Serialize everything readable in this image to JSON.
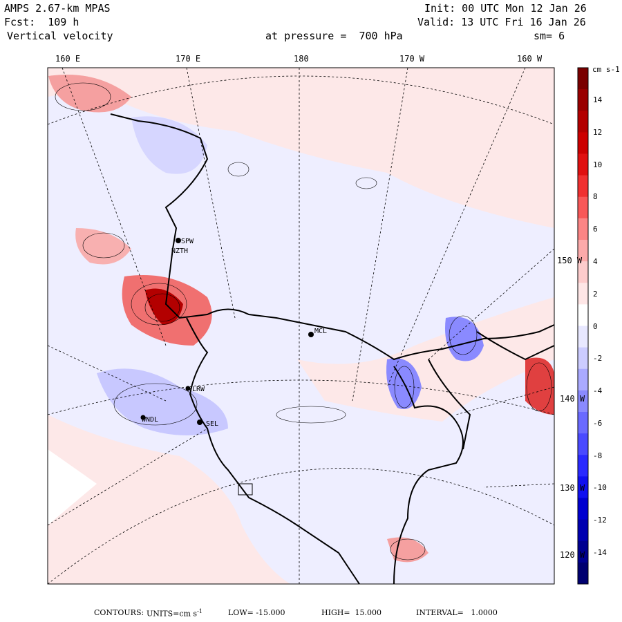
{
  "header": {
    "model": "AMPS 2.67-km MPAS",
    "forecast": "Fcst:  109 h",
    "field": "Vertical velocity",
    "init": "Init: 00 UTC Mon 12 Jan 26",
    "valid": "Valid: 13 UTC Fri 16 Jan 26",
    "pressure": "at pressure =  700 hPa",
    "smoothing": "sm= 6"
  },
  "longitude_labels": [
    "160 E",
    "170 E",
    "180",
    "170 W",
    "160 W"
  ],
  "latitude_labels": [
    "150 W",
    "140 W",
    "130 W",
    "120 W"
  ],
  "stations": [
    "SPW",
    "NZTH",
    "MCL",
    "LRW",
    "WNDL",
    "SEL"
  ],
  "colorbar": {
    "units": "cm s-1",
    "ticks": [
      "14",
      "12",
      "10",
      "8",
      "6",
      "4",
      "2",
      "0",
      "-2",
      "-4",
      "-6",
      "-8",
      "-10",
      "-12",
      "-14"
    ],
    "colors": [
      "#7a0000",
      "#990000",
      "#b30000",
      "#cc0000",
      "#e01010",
      "#f03030",
      "#f85858",
      "#fb8585",
      "#fcaaaa",
      "#fdcccc",
      "#fee6e6",
      "#ffffff",
      "#e8e8ff",
      "#ccccff",
      "#aaaaff",
      "#8a8aff",
      "#6a6aff",
      "#4a4aff",
      "#2a2aff",
      "#1010f0",
      "#0000d0",
      "#0000b0",
      "#000090",
      "#000070"
    ]
  },
  "footer": {
    "contours": "CONTOURS:",
    "units": "UNITS=cm s",
    "units_exp": "-1",
    "low": "LOW= -15.000",
    "high": "HIGH=  15.000",
    "interval": "INTERVAL=   1.0000"
  }
}
